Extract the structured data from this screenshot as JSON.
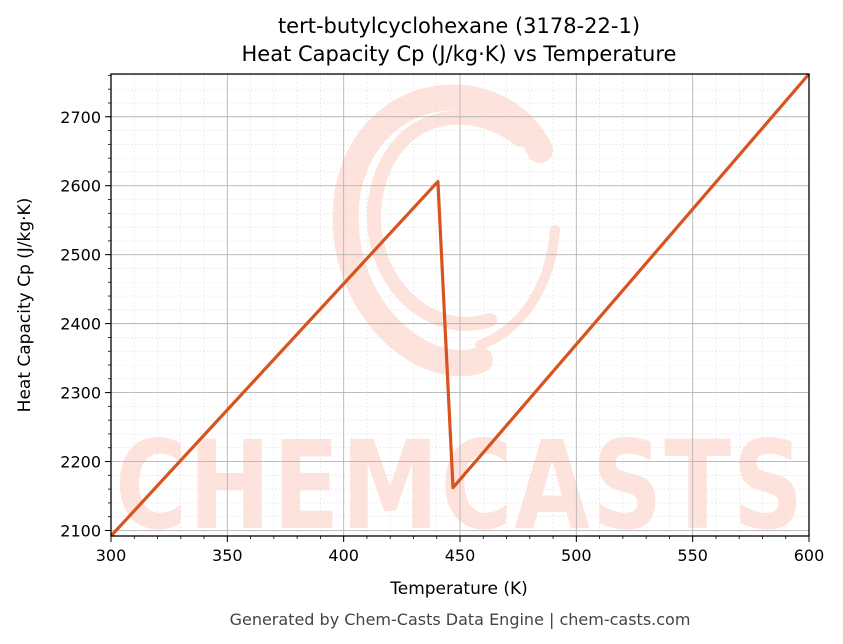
{
  "footer": "Generated by Chem-Casts Data Engine | chem-casts.com",
  "watermark": {
    "text": "CHEMCASTS",
    "color": "#fde3dc"
  },
  "chart_data": {
    "type": "line",
    "title": [
      "tert-butylcyclohexane (3178-22-1)",
      "Heat Capacity Cp (J/kg·K) vs Temperature"
    ],
    "xlabel": "Temperature (K)",
    "ylabel": "Heat Capacity Cp (J/kg·K)",
    "xlim": [
      300,
      600
    ],
    "ylim": [
      2092,
      2762
    ],
    "x_ticks": [
      300,
      350,
      400,
      450,
      500,
      550,
      600
    ],
    "y_ticks": [
      2100,
      2200,
      2300,
      2400,
      2500,
      2600,
      2700
    ],
    "grid": true,
    "series": [
      {
        "name": "",
        "color": "#d9531e",
        "points": [
          [
            300,
            2092
          ],
          [
            440.5,
            2606
          ],
          [
            447,
            2162
          ],
          [
            600,
            2762
          ]
        ]
      }
    ]
  }
}
